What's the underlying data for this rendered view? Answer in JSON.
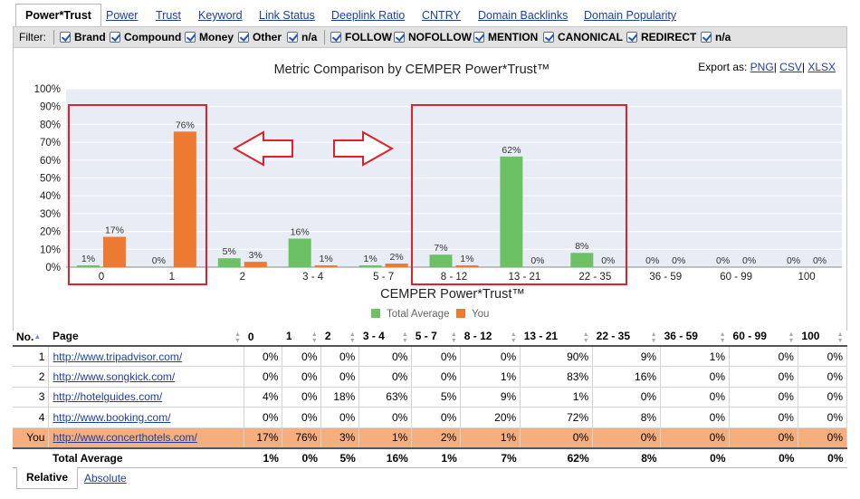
{
  "tabs": [
    "Power*Trust",
    "Power",
    "Trust",
    "Keyword",
    "Link Status",
    "Deeplink Ratio",
    "CNTRY",
    "Domain Backlinks",
    "Domain Popularity"
  ],
  "filter": {
    "label": "Filter:",
    "group1": [
      "Brand",
      "Compound",
      "Money",
      "Other",
      "n/a"
    ],
    "group2": [
      "FOLLOW",
      "NOFOLLOW",
      "MENTION",
      "CANONICAL",
      "REDIRECT",
      "n/a"
    ]
  },
  "export": {
    "label": "Export as:",
    "options": [
      "PNG",
      "CSV",
      "XLSX"
    ],
    "sep": "|"
  },
  "colors": {
    "total_average": "#6cc165",
    "you": "#ee7a31",
    "highlight_box": "#e0202a",
    "you_row": "#f5ae7d"
  },
  "chart_data": {
    "type": "bar",
    "title": "Metric Comparison by CEMPER Power*Trust™",
    "xlabel": "CEMPER Power*Trust™",
    "ylabel": "",
    "ylim": [
      0,
      100
    ],
    "yticks": [
      "0%",
      "10%",
      "20%",
      "30%",
      "40%",
      "50%",
      "60%",
      "70%",
      "80%",
      "90%",
      "100%"
    ],
    "grid": true,
    "legend_position": "bottom",
    "categories": [
      "0",
      "1",
      "2",
      "3 - 4",
      "5 - 7",
      "8 - 12",
      "13 - 21",
      "22 - 35",
      "36 - 59",
      "60 - 99",
      "100"
    ],
    "series": [
      {
        "name": "Total Average",
        "values": [
          1,
          0,
          5,
          16,
          1,
          7,
          62,
          8,
          0,
          0,
          0
        ],
        "labels": [
          "1%",
          "0%",
          "5%",
          "16%",
          "1%",
          "7%",
          "62%",
          "8%",
          "0%",
          "0%",
          "0%"
        ]
      },
      {
        "name": "You",
        "values": [
          17,
          76,
          3,
          1,
          2,
          1,
          0,
          0,
          0,
          0,
          0
        ],
        "labels": [
          "17%",
          "76%",
          "3%",
          "1%",
          "2%",
          "1%",
          "0%",
          "0%",
          "0%",
          "0%",
          "0%"
        ]
      }
    ]
  },
  "table": {
    "headers": [
      "No.",
      "Page",
      "0",
      "1",
      "2",
      "3 - 4",
      "5 - 7",
      "8 - 12",
      "13 - 21",
      "22 - 35",
      "36 - 59",
      "60 - 99",
      "100"
    ],
    "rows": [
      {
        "no": "1",
        "page": "http://www.tripadvisor.com/",
        "values": [
          "0%",
          "0%",
          "0%",
          "0%",
          "0%",
          "0%",
          "90%",
          "9%",
          "1%",
          "0%",
          "0%"
        ]
      },
      {
        "no": "2",
        "page": "http://www.songkick.com/",
        "values": [
          "0%",
          "0%",
          "0%",
          "0%",
          "0%",
          "1%",
          "83%",
          "16%",
          "0%",
          "0%",
          "0%"
        ]
      },
      {
        "no": "3",
        "page": "http://hotelguides.com/",
        "values": [
          "4%",
          "0%",
          "18%",
          "63%",
          "5%",
          "9%",
          "1%",
          "0%",
          "0%",
          "0%",
          "0%"
        ]
      },
      {
        "no": "4",
        "page": "http://www.booking.com/",
        "values": [
          "0%",
          "0%",
          "0%",
          "0%",
          "0%",
          "20%",
          "72%",
          "8%",
          "0%",
          "0%",
          "0%"
        ]
      },
      {
        "no": "You",
        "page": "http://www.concerthotels.com/",
        "values": [
          "17%",
          "76%",
          "3%",
          "1%",
          "2%",
          "1%",
          "0%",
          "0%",
          "0%",
          "0%",
          "0%"
        ]
      }
    ],
    "total": {
      "label": "Total Average",
      "values": [
        "1%",
        "0%",
        "5%",
        "16%",
        "1%",
        "7%",
        "62%",
        "8%",
        "0%",
        "0%",
        "0%"
      ]
    }
  },
  "bottom_tabs": [
    "Relative",
    "Absolute"
  ]
}
